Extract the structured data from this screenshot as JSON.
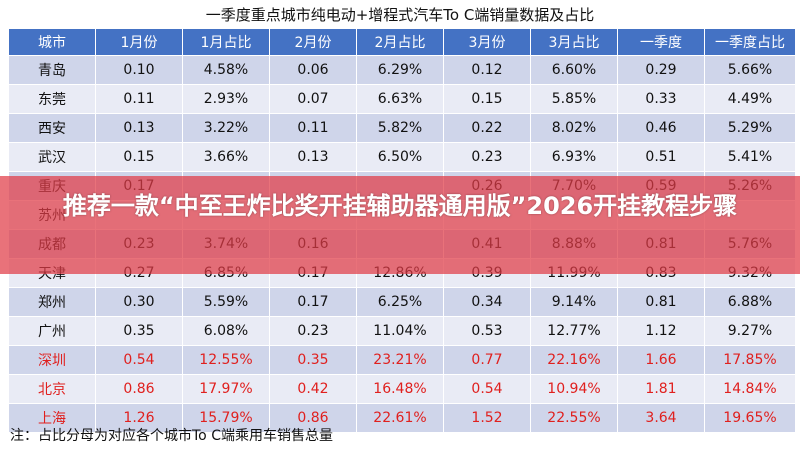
{
  "title": "一季度重点城市纯电动+增程式汽车To C端销量数据及占比",
  "table": {
    "headers": [
      "城市",
      "1月份",
      "1月占比",
      "2月份",
      "2月占比",
      "3月份",
      "3月占比",
      "一季度",
      "一季度占比"
    ],
    "rows": [
      [
        "青岛",
        "0.10",
        "4.58%",
        "0.06",
        "6.29%",
        "0.12",
        "6.60%",
        "0.29",
        "5.66%"
      ],
      [
        "东莞",
        "0.11",
        "2.93%",
        "0.07",
        "6.63%",
        "0.15",
        "5.85%",
        "0.33",
        "4.49%"
      ],
      [
        "西安",
        "0.13",
        "3.22%",
        "0.11",
        "5.82%",
        "0.22",
        "8.02%",
        "0.46",
        "5.29%"
      ],
      [
        "武汉",
        "0.15",
        "3.66%",
        "0.13",
        "6.50%",
        "0.23",
        "6.93%",
        "0.51",
        "5.41%"
      ],
      [
        "重庆",
        "0.17",
        "",
        "",
        "",
        "0.26",
        "7.70%",
        "0.59",
        "5.26%"
      ],
      [
        "苏州",
        "",
        "",
        "",
        "",
        "",
        "",
        "",
        ""
      ],
      [
        "成都",
        "0.23",
        "3.74%",
        "0.16",
        "",
        "0.41",
        "8.88%",
        "0.81",
        "5.76%"
      ],
      [
        "天津",
        "0.27",
        "6.85%",
        "0.17",
        "12.86%",
        "0.39",
        "11.99%",
        "0.83",
        "9.32%"
      ],
      [
        "郑州",
        "0.30",
        "5.59%",
        "0.17",
        "6.25%",
        "0.34",
        "9.14%",
        "0.81",
        "6.88%"
      ],
      [
        "广州",
        "0.35",
        "6.08%",
        "0.23",
        "11.04%",
        "0.53",
        "12.77%",
        "1.12",
        "9.27%"
      ],
      [
        "深圳",
        "0.54",
        "12.55%",
        "0.35",
        "23.21%",
        "0.77",
        "22.16%",
        "1.66",
        "17.85%"
      ],
      [
        "北京",
        "0.86",
        "17.97%",
        "0.42",
        "16.48%",
        "0.54",
        "10.94%",
        "1.81",
        "14.84%"
      ],
      [
        "上海",
        "1.26",
        "15.79%",
        "0.86",
        "22.61%",
        "1.52",
        "22.55%",
        "3.64",
        "19.65%"
      ]
    ],
    "highlight_rows": [
      10,
      11,
      12
    ]
  },
  "footnote": "注：占比分母为对应各个城市To C端乘用车销售总量",
  "overlay_text": "推荐一款“中至王炸比奖开挂辅助器通用版”2026开挂教程步骤",
  "colors": {
    "header_bg": "#4472c4",
    "row_odd": "#cfd5ea",
    "row_even": "#e9ebf5",
    "highlight_text": "#e0201e",
    "overlay": "#e13c46"
  }
}
